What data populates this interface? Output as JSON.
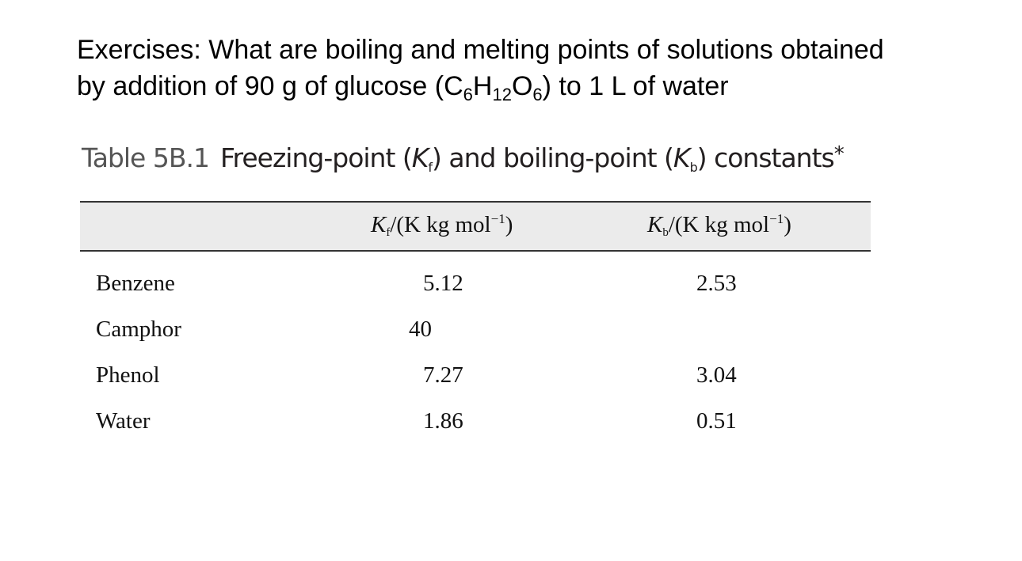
{
  "question": {
    "line1": "Exercises:  What are boiling and melting points of  solutions obtained",
    "line2_start": "by addition of 90 g of glucose (C",
    "sub_c": "6",
    "h": "H",
    "sub_h": "12",
    "o": "O",
    "sub_o": "6",
    "line2_end": ")  to 1 L of water"
  },
  "table": {
    "label": "Table 5B.1",
    "caption_a": "Freezing-point (",
    "k": "K",
    "f": "f",
    "caption_b": ") and boiling-point (",
    "b": "b",
    "caption_c": ") constants",
    "star": "*",
    "unit_text": "/(K kg mol",
    "unit_exp": "−1",
    "close": ")",
    "rows": [
      {
        "name": "Benzene",
        "kf": "5.12",
        "kb": "2.53"
      },
      {
        "name": "Camphor",
        "kf": "40",
        "kb": ""
      },
      {
        "name": "Phenol",
        "kf": "7.27",
        "kb": "3.04"
      },
      {
        "name": "Water",
        "kf": "1.86",
        "kb": "0.51"
      }
    ]
  }
}
